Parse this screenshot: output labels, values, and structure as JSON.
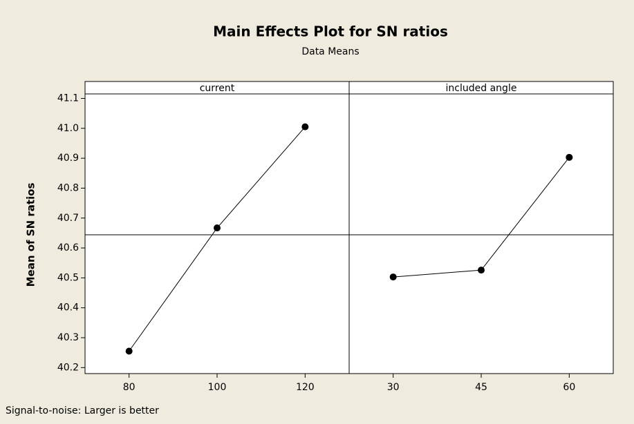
{
  "chart_data": {
    "type": "line",
    "title": "Main Effects Plot for SN ratios",
    "subtitle": "Data Means",
    "y_label": "Mean of SN ratios",
    "footnote": "Signal-to-noise: Larger is better",
    "color": "#000000",
    "panels": [
      {
        "name": "current",
        "categories": [
          80,
          100,
          120
        ],
        "values": [
          40.255,
          40.667,
          41.005
        ]
      },
      {
        "name": "included angle",
        "categories": [
          30,
          45,
          60
        ],
        "values": [
          40.503,
          40.526,
          40.903
        ]
      }
    ],
    "reference_line": 40.644,
    "ylim": [
      40.18,
      41.115
    ],
    "yticks": [
      40.2,
      40.3,
      40.4,
      40.5,
      40.6,
      40.7,
      40.8,
      40.9,
      {
        "value": 41,
        "label": "41.0"
      },
      41.1
    ]
  }
}
